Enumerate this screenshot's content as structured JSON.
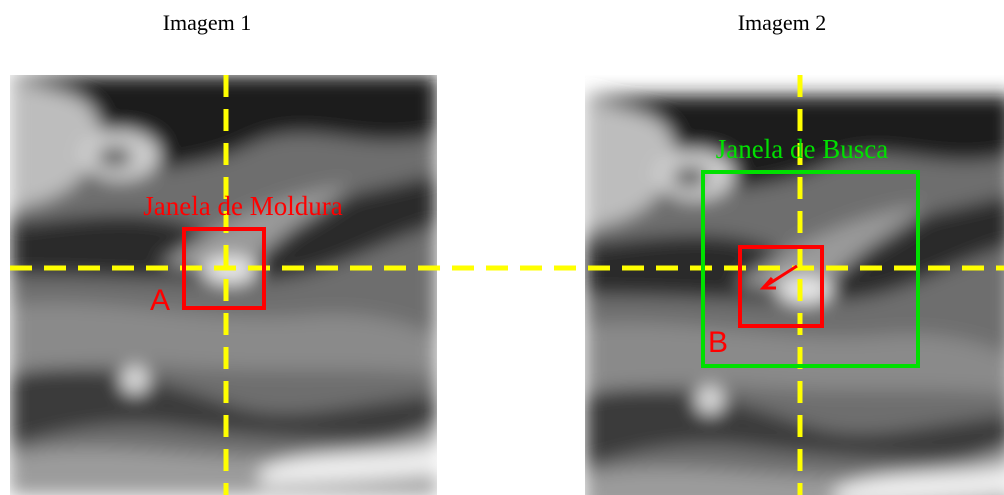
{
  "images": [
    {
      "title": "Imagem 1",
      "window_label": "Janela de Moldura",
      "point_label": "A"
    },
    {
      "title": "Imagem 2",
      "window_label": "Janela de Busca",
      "point_label": "B"
    }
  ]
}
